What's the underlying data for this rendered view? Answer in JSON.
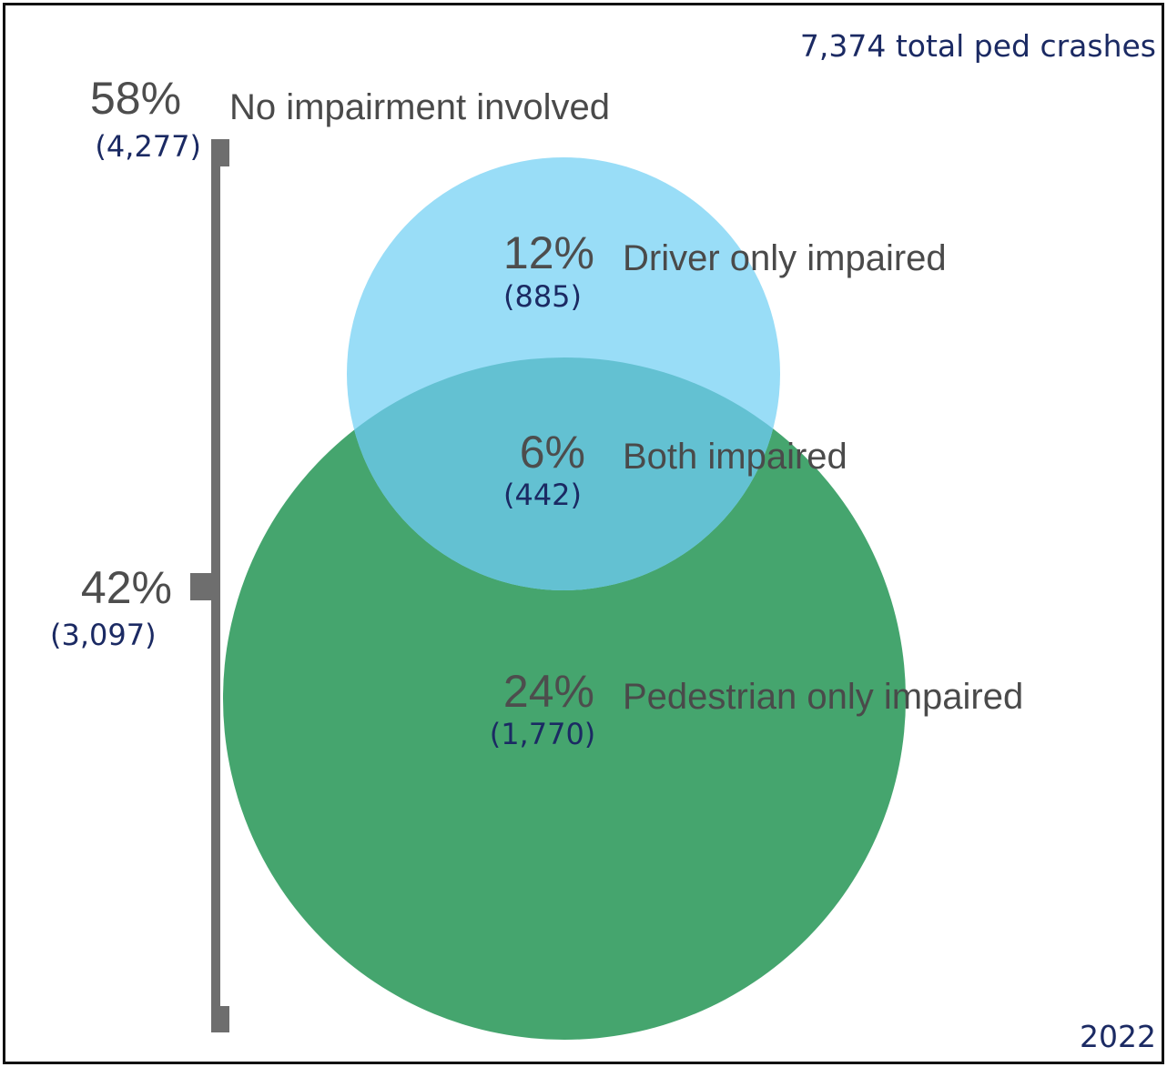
{
  "total_label": "7,374 total ped crashes",
  "year": "2022",
  "colors": {
    "driver_circle": "#99ddf7",
    "pedestrian_circle": "#45a56e",
    "overlap": "#63c1d2",
    "bracket": "#6e6e6e",
    "count_text": "#1b2a63",
    "label_text": "#4a4a4a"
  },
  "no_impairment": {
    "pct": "58%",
    "count": "(4,277)",
    "label": "No impairment involved"
  },
  "any_impairment": {
    "pct": "42%",
    "count": "(3,097)"
  },
  "driver_only": {
    "pct": "12%",
    "count": "(885)",
    "label": "Driver only impaired"
  },
  "both": {
    "pct": "6%",
    "count": "(442)",
    "label": "Both  impaired"
  },
  "pedestrian_only": {
    "pct": "24%",
    "count": "(1,770)",
    "label": "Pedestrian only impaired"
  }
}
